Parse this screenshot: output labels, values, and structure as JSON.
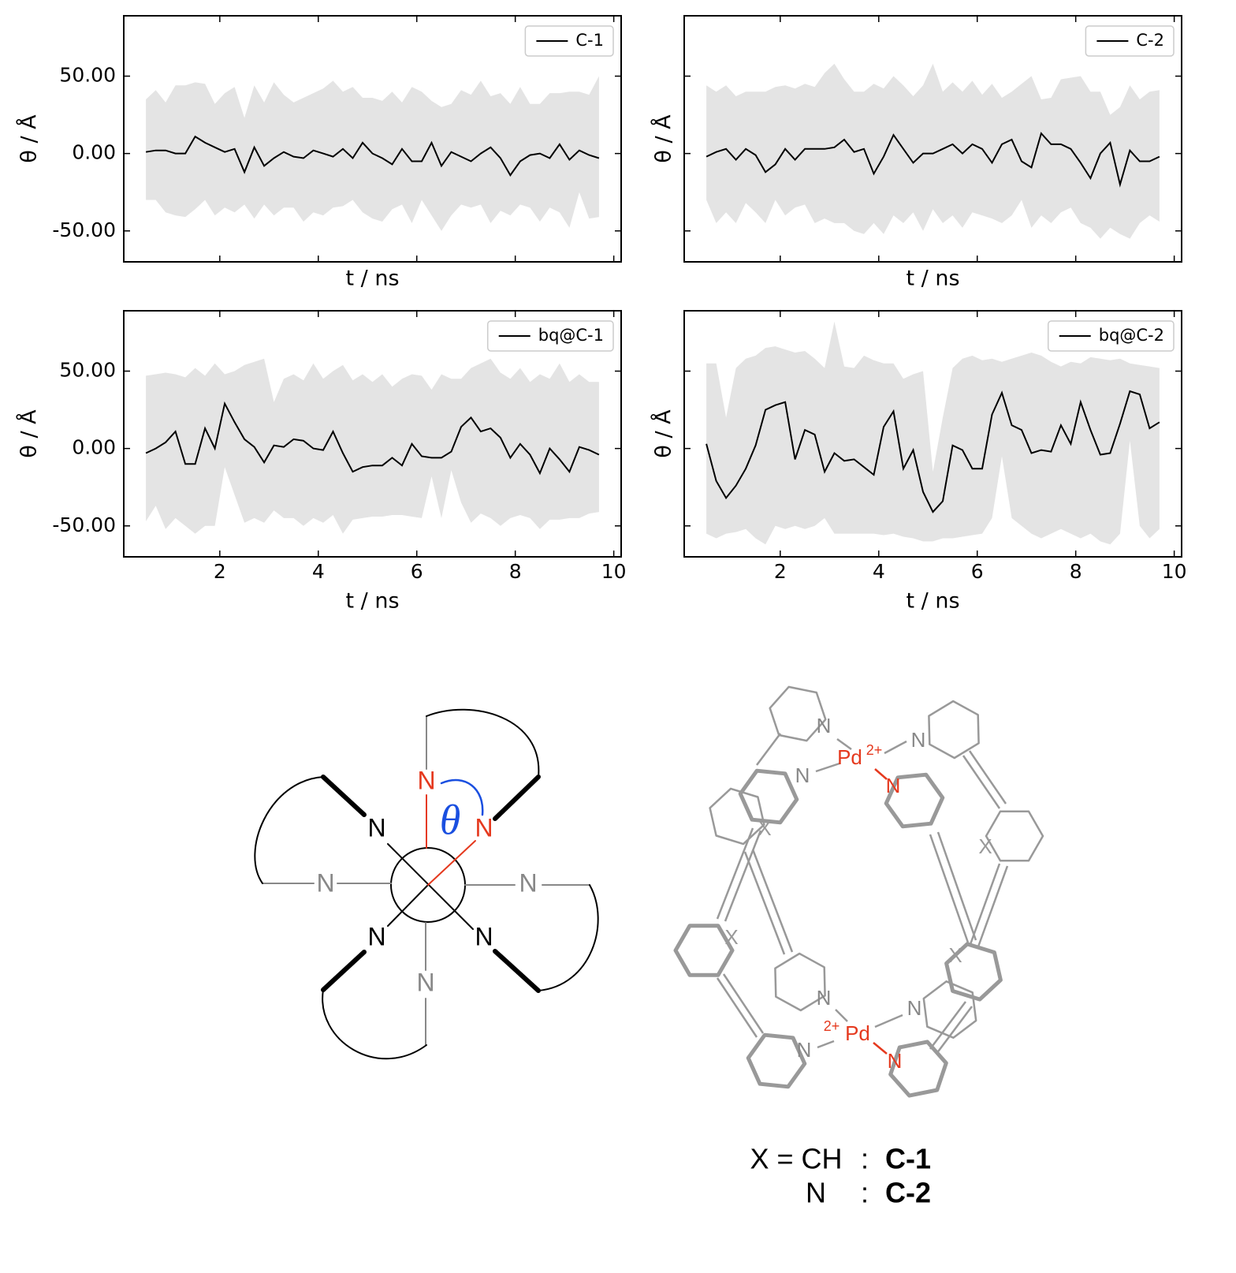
{
  "chart_data": [
    {
      "type": "line",
      "xlabel": "t / ns",
      "ylabel": "θ / Å",
      "legend_loc": "upper right",
      "xlim": [
        0.05,
        10.15
      ],
      "ylim": [
        -70,
        89
      ],
      "xticks": [
        2,
        4,
        6,
        8,
        10
      ],
      "show_xtick_labels": false,
      "yticks": [
        {
          "value": -50,
          "label": "-50.00"
        },
        {
          "value": 0,
          "label": "0.00"
        },
        {
          "value": 50,
          "label": "50.00"
        }
      ],
      "show_ytick_labels": true,
      "x": [
        0.5,
        0.7,
        0.9,
        1.1,
        1.3,
        1.5,
        1.7,
        1.9,
        2.1,
        2.3,
        2.5,
        2.7,
        2.9,
        3.1,
        3.3,
        3.5,
        3.7,
        3.9,
        4.1,
        4.3,
        4.5,
        4.7,
        4.9,
        5.1,
        5.3,
        5.5,
        5.7,
        5.9,
        6.1,
        6.3,
        6.5,
        6.7,
        6.9,
        7.1,
        7.3,
        7.5,
        7.7,
        7.9,
        8.1,
        8.3,
        8.5,
        8.7,
        8.9,
        9.1,
        9.3,
        9.5,
        9.7
      ],
      "series": [
        {
          "name": "C-1",
          "color": "#000000",
          "values": [
            1,
            2,
            2,
            0,
            0,
            11,
            7,
            4,
            1,
            3,
            -12,
            4,
            -8,
            -3,
            1,
            -2,
            -3,
            2,
            0,
            -2,
            3,
            -3,
            7,
            0,
            -3,
            -7,
            3,
            -5,
            -5,
            7,
            -8,
            1,
            -2,
            -5,
            0,
            4,
            -3,
            -14,
            -5,
            -1,
            0,
            -3,
            6,
            -4,
            2,
            -1,
            -3
          ]
        }
      ],
      "band": {
        "color": "#e4e4e4",
        "upper": [
          35,
          41,
          33,
          44,
          44,
          46,
          45,
          32,
          39,
          43,
          23,
          44,
          33,
          46,
          38,
          33,
          36,
          39,
          42,
          47,
          40,
          43,
          36,
          36,
          34,
          40,
          33,
          43,
          40,
          34,
          30,
          32,
          41,
          38,
          47,
          37,
          39,
          32,
          43,
          32,
          32,
          39,
          39,
          40,
          40,
          38,
          50
        ],
        "lower": [
          -30,
          -30,
          -38,
          -40,
          -41,
          -36,
          -30,
          -40,
          -35,
          -38,
          -33,
          -42,
          -33,
          -40,
          -35,
          -35,
          -44,
          -38,
          -40,
          -35,
          -34,
          -30,
          -38,
          -42,
          -44,
          -36,
          -33,
          -45,
          -30,
          -40,
          -50,
          -40,
          -33,
          -35,
          -33,
          -45,
          -37,
          -40,
          -33,
          -35,
          -44,
          -35,
          -38,
          -48,
          -25,
          -42,
          -41
        ]
      }
    },
    {
      "type": "line",
      "xlabel": "t / ns",
      "ylabel": "θ / Å",
      "legend_loc": "upper right",
      "xlim": [
        0.05,
        10.15
      ],
      "ylim": [
        -70,
        89
      ],
      "xticks": [
        2,
        4,
        6,
        8,
        10
      ],
      "show_xtick_labels": false,
      "yticks": [
        -50,
        0,
        50
      ],
      "show_ytick_labels": false,
      "x": [
        0.5,
        0.7,
        0.9,
        1.1,
        1.3,
        1.5,
        1.7,
        1.9,
        2.1,
        2.3,
        2.5,
        2.7,
        2.9,
        3.1,
        3.3,
        3.5,
        3.7,
        3.9,
        4.1,
        4.3,
        4.5,
        4.7,
        4.9,
        5.1,
        5.3,
        5.5,
        5.7,
        5.9,
        6.1,
        6.3,
        6.5,
        6.7,
        6.9,
        7.1,
        7.3,
        7.5,
        7.7,
        7.9,
        8.1,
        8.3,
        8.5,
        8.7,
        8.9,
        9.1,
        9.3,
        9.5,
        9.7
      ],
      "series": [
        {
          "name": "C-2",
          "color": "#000000",
          "values": [
            -2,
            1,
            3,
            -4,
            3,
            -1,
            -12,
            -7,
            3,
            -4,
            3,
            3,
            3,
            4,
            9,
            1,
            3,
            -13,
            -2,
            12,
            3,
            -6,
            0,
            0,
            3,
            6,
            0,
            6,
            3,
            -6,
            6,
            9,
            -5,
            -9,
            13,
            6,
            6,
            3,
            -6,
            -16,
            0,
            7,
            -20,
            2,
            -5,
            -5,
            -2
          ]
        }
      ],
      "band": {
        "color": "#e4e4e4",
        "upper": [
          44,
          40,
          44,
          37,
          40,
          40,
          40,
          43,
          44,
          42,
          45,
          43,
          52,
          58,
          48,
          40,
          40,
          45,
          42,
          50,
          44,
          37,
          44,
          58,
          40,
          46,
          40,
          47,
          38,
          45,
          36,
          40,
          45,
          50,
          35,
          36,
          48,
          49,
          50,
          40,
          40,
          25,
          30,
          44,
          35,
          40,
          41
        ],
        "lower": [
          -30,
          -45,
          -38,
          -45,
          -32,
          -38,
          -45,
          -30,
          -40,
          -35,
          -33,
          -45,
          -42,
          -45,
          -45,
          -50,
          -52,
          -45,
          -52,
          -40,
          -45,
          -38,
          -50,
          -36,
          -45,
          -40,
          -48,
          -38,
          -40,
          -42,
          -45,
          -40,
          -30,
          -48,
          -40,
          -45,
          -38,
          -35,
          -45,
          -48,
          -55,
          -48,
          -52,
          -55,
          -45,
          -40,
          -44
        ]
      }
    },
    {
      "type": "line",
      "xlabel": "t / ns",
      "ylabel": "θ / Å",
      "legend_loc": "upper right",
      "xlim": [
        0.05,
        10.15
      ],
      "ylim": [
        -70,
        89
      ],
      "xticks": [
        2,
        4,
        6,
        8,
        10
      ],
      "show_xtick_labels": true,
      "yticks": [
        {
          "value": -50,
          "label": "-50.00"
        },
        {
          "value": 0,
          "label": "0.00"
        },
        {
          "value": 50,
          "label": "50.00"
        }
      ],
      "show_ytick_labels": true,
      "x": [
        0.5,
        0.7,
        0.9,
        1.1,
        1.3,
        1.5,
        1.7,
        1.9,
        2.1,
        2.3,
        2.5,
        2.7,
        2.9,
        3.1,
        3.3,
        3.5,
        3.7,
        3.9,
        4.1,
        4.3,
        4.5,
        4.7,
        4.9,
        5.1,
        5.3,
        5.5,
        5.7,
        5.9,
        6.1,
        6.3,
        6.5,
        6.7,
        6.9,
        7.1,
        7.3,
        7.5,
        7.7,
        7.9,
        8.1,
        8.3,
        8.5,
        8.7,
        8.9,
        9.1,
        9.3,
        9.5,
        9.7
      ],
      "series": [
        {
          "name": "bq@C-1",
          "color": "#000000",
          "values": [
            -3,
            0,
            4,
            11,
            -10,
            -10,
            13,
            0,
            29,
            17,
            6,
            1,
            -9,
            2,
            1,
            6,
            5,
            0,
            -1,
            11,
            -3,
            -15,
            -12,
            -11,
            -11,
            -6,
            -11,
            3,
            -5,
            -6,
            -6,
            -2,
            14,
            20,
            11,
            13,
            7,
            -6,
            3,
            -4,
            -16,
            0,
            -7,
            -15,
            1,
            -1,
            -4
          ]
        }
      ],
      "band": {
        "color": "#e4e4e4",
        "upper": [
          47,
          48,
          49,
          48,
          46,
          52,
          47,
          55,
          48,
          50,
          54,
          56,
          58,
          30,
          45,
          48,
          44,
          55,
          45,
          50,
          54,
          44,
          48,
          43,
          48,
          40,
          45,
          48,
          47,
          38,
          48,
          45,
          45,
          52,
          55,
          58,
          49,
          45,
          52,
          43,
          48,
          45,
          55,
          43,
          48,
          43,
          43
        ],
        "lower": [
          -47,
          -37,
          -52,
          -45,
          -50,
          -55,
          -50,
          -50,
          -12,
          -30,
          -48,
          -45,
          -48,
          -40,
          -45,
          -45,
          -50,
          -45,
          -48,
          -43,
          -55,
          -46,
          -45,
          -44,
          -44,
          -43,
          -43,
          -44,
          -45,
          -18,
          -45,
          -14,
          -35,
          -48,
          -42,
          -45,
          -50,
          -45,
          -43,
          -45,
          -52,
          -46,
          -46,
          -45,
          -45,
          -42,
          -41
        ]
      }
    },
    {
      "type": "line",
      "xlabel": "t / ns",
      "ylabel": "θ / Å",
      "legend_loc": "upper right",
      "xlim": [
        0.05,
        10.15
      ],
      "ylim": [
        -70,
        89
      ],
      "xticks": [
        2,
        4,
        6,
        8,
        10
      ],
      "show_xtick_labels": true,
      "yticks": [
        -50,
        0,
        50
      ],
      "show_ytick_labels": false,
      "x": [
        0.5,
        0.7,
        0.9,
        1.1,
        1.3,
        1.5,
        1.7,
        1.9,
        2.1,
        2.3,
        2.5,
        2.7,
        2.9,
        3.1,
        3.3,
        3.5,
        3.7,
        3.9,
        4.1,
        4.3,
        4.5,
        4.7,
        4.9,
        5.1,
        5.3,
        5.5,
        5.7,
        5.9,
        6.1,
        6.3,
        6.5,
        6.7,
        6.9,
        7.1,
        7.3,
        7.5,
        7.7,
        7.9,
        8.1,
        8.3,
        8.5,
        8.7,
        8.9,
        9.1,
        9.3,
        9.5,
        9.7
      ],
      "series": [
        {
          "name": "bq@C-2",
          "color": "#000000",
          "values": [
            3,
            -21,
            -32,
            -24,
            -13,
            2,
            25,
            28,
            30,
            -7,
            12,
            9,
            -15,
            -3,
            -8,
            -7,
            -12,
            -17,
            14,
            24,
            -13,
            -1,
            -28,
            -41,
            -34,
            2,
            -1,
            -13,
            -13,
            22,
            36,
            15,
            12,
            -3,
            -1,
            -2,
            15,
            3,
            30,
            12,
            -4,
            -3,
            16,
            37,
            35,
            13,
            17
          ]
        }
      ],
      "band": {
        "color": "#e4e4e4",
        "upper": [
          55,
          55,
          20,
          52,
          58,
          60,
          65,
          66,
          64,
          62,
          63,
          58,
          52,
          82,
          53,
          52,
          60,
          57,
          55,
          55,
          45,
          48,
          50,
          -15,
          20,
          52,
          58,
          60,
          57,
          58,
          56,
          58,
          60,
          62,
          60,
          56,
          53,
          56,
          55,
          59,
          58,
          57,
          58,
          55,
          54,
          53,
          52
        ],
        "lower": [
          -55,
          -58,
          -55,
          -54,
          -52,
          -58,
          -62,
          -50,
          -52,
          -50,
          -52,
          -50,
          -45,
          -55,
          -55,
          -55,
          -55,
          -55,
          -56,
          -55,
          -57,
          -58,
          -60,
          -60,
          -58,
          -58,
          -57,
          -56,
          -55,
          -45,
          -5,
          -45,
          -50,
          -55,
          -58,
          -55,
          -52,
          -55,
          -58,
          -55,
          -60,
          -62,
          -55,
          5,
          -50,
          -58,
          -52
        ]
      }
    }
  ],
  "schematic": {
    "atoms": [
      "N",
      "N",
      "N",
      "N",
      "N",
      "N",
      "N",
      "N"
    ],
    "angle": "θ"
  },
  "structure": {
    "atoms": [
      "N",
      "N",
      "N",
      "N",
      "N",
      "N",
      "N",
      "N"
    ],
    "metals": [
      {
        "text": "Pd",
        "charge": "2+"
      },
      {
        "text": "Pd",
        "charge": "2+"
      }
    ],
    "substituents": [
      "X",
      "X",
      "X",
      "X"
    ]
  },
  "caption": {
    "rows": [
      [
        "X = CH",
        ":",
        "C-1"
      ],
      [
        "N",
        ":",
        "C-2"
      ]
    ]
  }
}
